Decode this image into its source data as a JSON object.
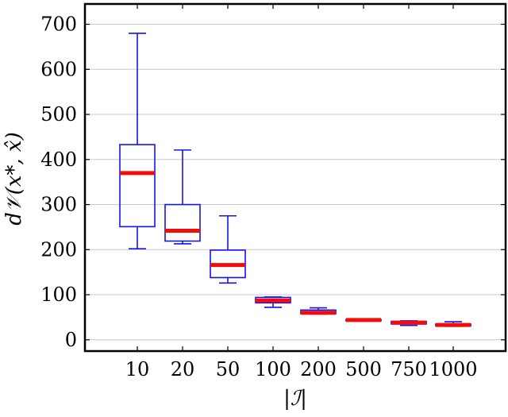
{
  "chart_data": {
    "type": "box",
    "xlabel": "|ℐ|",
    "ylabel": "d𝒱(x*, x̂)",
    "ylim": [
      -25,
      745
    ],
    "yticks": [
      0,
      100,
      200,
      300,
      400,
      500,
      600,
      700
    ],
    "grid": "horizontal",
    "categories": [
      "10",
      "20",
      "50",
      "100",
      "200",
      "500",
      "750",
      "1000"
    ],
    "series": [
      {
        "boxes": [
          {
            "whisker_low": 202,
            "q1": 251,
            "median": 370,
            "q3": 433,
            "whisker_high": 680
          },
          {
            "whisker_low": 213,
            "q1": 219,
            "median": 242,
            "q3": 300,
            "whisker_high": 421
          },
          {
            "whisker_low": 126,
            "q1": 138,
            "median": 166,
            "q3": 199,
            "whisker_high": 275
          },
          {
            "whisker_low": 72,
            "q1": 82,
            "median": 87,
            "q3": 94,
            "whisker_high": 95
          },
          {
            "whisker_low": 57,
            "q1": 58,
            "median": 60,
            "q3": 66,
            "whisker_high": 71
          },
          {
            "whisker_low": 42,
            "q1": 42,
            "median": 44,
            "q3": 45,
            "whisker_high": 46
          },
          {
            "whisker_low": 32,
            "q1": 35,
            "median": 38,
            "q3": 41,
            "whisker_high": 42
          },
          {
            "whisker_low": 30,
            "q1": 31,
            "median": 33,
            "q3": 35,
            "whisker_high": 40
          }
        ]
      }
    ]
  }
}
